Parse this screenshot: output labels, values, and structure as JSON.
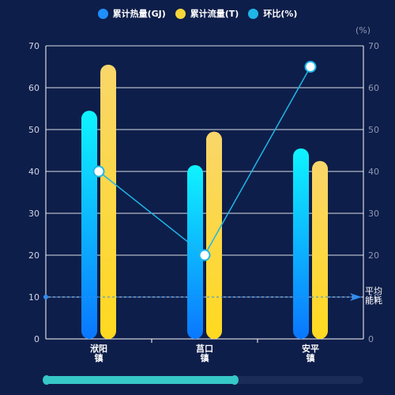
{
  "legend": [
    {
      "label": "累计热量(GJ)",
      "color": "#1e90ff",
      "dot": "legend-dot-heat-icon"
    },
    {
      "label": "累计流量(T)",
      "color": "#f6d83a",
      "dot": "legend-dot-flow-icon"
    },
    {
      "label": "环比(%)",
      "color": "#1fb6e8",
      "dot": "legend-dot-ratio-icon"
    }
  ],
  "chart_data": {
    "type": "bar",
    "categories": [
      "洑阳\n镇",
      "莒口\n镇",
      "安平\n镇"
    ],
    "series": [
      {
        "name": "累计热量(GJ)",
        "type": "bar",
        "values": [
          54.5,
          41.5,
          45.5
        ],
        "colors": [
          "#0ff4ff",
          "#0a77ff"
        ]
      },
      {
        "name": "累计流量(T)",
        "type": "bar",
        "values": [
          65.5,
          49.5,
          42.5
        ],
        "colors": [
          "#f9d66a",
          "#ffd91f"
        ]
      },
      {
        "name": "环比(%)",
        "type": "line",
        "axis": "right",
        "values": [
          40,
          20,
          65
        ],
        "color": "#1fb6e8"
      }
    ],
    "markline": {
      "value": 10,
      "label": "平均\n能耗",
      "color": "#2f8df0"
    },
    "y_left": {
      "min": 0,
      "max": 70,
      "ticks": [
        0,
        10,
        20,
        30,
        40,
        50,
        60,
        70
      ]
    },
    "y_right": {
      "min": 0,
      "max": 70,
      "ticks": [
        0,
        10,
        20,
        30,
        40,
        50,
        60,
        70
      ],
      "unit": "(%)"
    },
    "grid": true,
    "legend_position": "top-center"
  },
  "slider": {
    "start": 0,
    "end": 0.6
  }
}
